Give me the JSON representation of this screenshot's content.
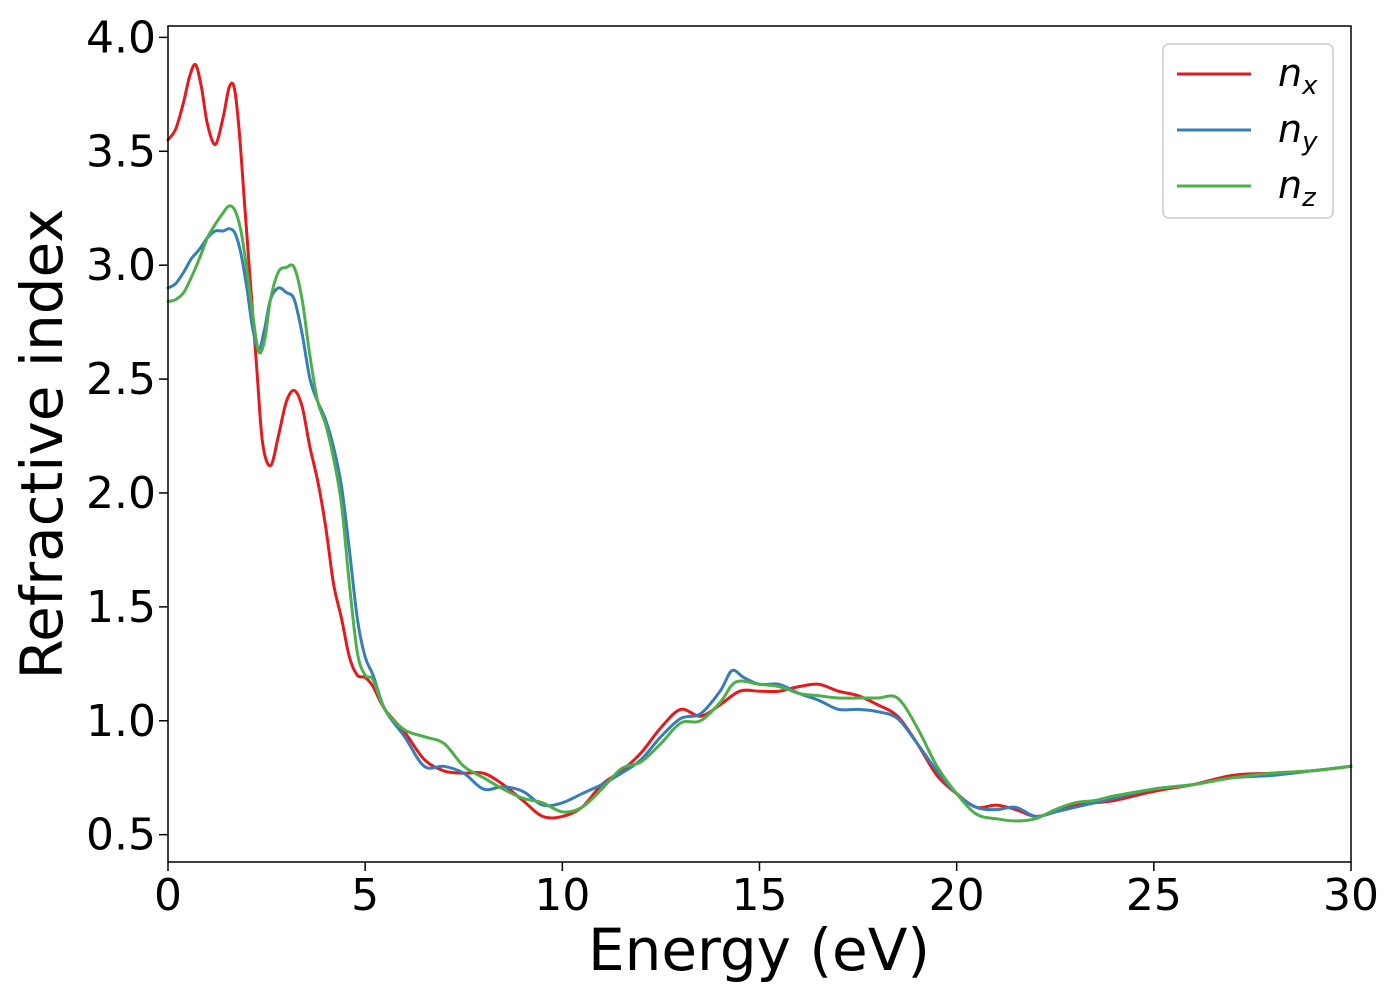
{
  "chart_data": {
    "type": "line",
    "xlabel": "Energy (eV)",
    "ylabel": "Refractive index",
    "xlim": [
      0,
      30
    ],
    "ylim": [
      0.38,
      4.05
    ],
    "xticks": [
      0,
      5,
      10,
      15,
      20,
      25,
      30
    ],
    "yticks": [
      0.5,
      1.0,
      1.5,
      2.0,
      2.5,
      3.0,
      3.5,
      4.0
    ],
    "xtick_labels": [
      "0",
      "5",
      "10",
      "15",
      "20",
      "25",
      "30"
    ],
    "ytick_labels": [
      "0.5",
      "1.0",
      "1.5",
      "2.0",
      "2.5",
      "3.0",
      "3.5",
      "4.0"
    ],
    "grid": false,
    "legend_position": "top-right",
    "series": [
      {
        "name": "n",
        "subscript": "x",
        "color": "#e41a1c",
        "x": [
          0,
          0.2,
          0.4,
          0.55,
          0.7,
          0.85,
          1.0,
          1.2,
          1.4,
          1.55,
          1.68,
          1.8,
          1.95,
          2.1,
          2.25,
          2.4,
          2.6,
          2.8,
          3.0,
          3.2,
          3.4,
          3.6,
          3.8,
          4.0,
          4.2,
          4.4,
          4.6,
          4.8,
          5.0,
          5.2,
          5.5,
          6.0,
          6.5,
          7.0,
          7.5,
          8.0,
          8.5,
          9.0,
          9.5,
          10.0,
          10.5,
          11.0,
          11.5,
          12.0,
          12.5,
          13.0,
          13.5,
          14.0,
          14.5,
          15.0,
          15.5,
          16.0,
          16.5,
          17.0,
          17.5,
          18.0,
          18.5,
          19.0,
          19.5,
          20.0,
          20.5,
          21.0,
          21.5,
          22.0,
          22.5,
          23.0,
          23.5,
          24.0,
          25.0,
          26.0,
          27.0,
          28.0,
          29.0,
          30.0
        ],
        "y": [
          3.55,
          3.6,
          3.72,
          3.83,
          3.88,
          3.78,
          3.62,
          3.53,
          3.65,
          3.78,
          3.78,
          3.6,
          3.25,
          2.9,
          2.55,
          2.22,
          2.12,
          2.25,
          2.4,
          2.45,
          2.38,
          2.2,
          2.05,
          1.85,
          1.6,
          1.45,
          1.28,
          1.2,
          1.19,
          1.15,
          1.05,
          0.95,
          0.83,
          0.78,
          0.77,
          0.77,
          0.72,
          0.65,
          0.58,
          0.58,
          0.62,
          0.72,
          0.78,
          0.86,
          0.97,
          1.05,
          1.02,
          1.07,
          1.13,
          1.13,
          1.13,
          1.15,
          1.16,
          1.13,
          1.11,
          1.07,
          1.02,
          0.9,
          0.76,
          0.68,
          0.62,
          0.63,
          0.61,
          0.58,
          0.6,
          0.63,
          0.64,
          0.65,
          0.69,
          0.72,
          0.76,
          0.77,
          0.78,
          0.8
        ]
      },
      {
        "name": "n",
        "subscript": "y",
        "color": "#377eb8",
        "x": [
          0,
          0.2,
          0.4,
          0.6,
          0.8,
          1.0,
          1.2,
          1.4,
          1.55,
          1.7,
          1.85,
          2.0,
          2.15,
          2.3,
          2.45,
          2.6,
          2.8,
          3.0,
          3.2,
          3.4,
          3.6,
          3.8,
          4.0,
          4.2,
          4.4,
          4.6,
          4.8,
          5.0,
          5.2,
          5.5,
          6.0,
          6.5,
          7.0,
          7.5,
          8.0,
          8.5,
          9.0,
          9.5,
          10.0,
          10.5,
          11.0,
          11.5,
          12.0,
          12.5,
          13.0,
          13.5,
          14.0,
          14.3,
          14.6,
          15.0,
          15.5,
          16.0,
          16.5,
          17.0,
          17.5,
          18.0,
          18.5,
          19.0,
          19.5,
          20.0,
          20.5,
          21.0,
          21.5,
          22.0,
          22.5,
          23.0,
          23.5,
          24.0,
          25.0,
          26.0,
          27.0,
          28.0,
          29.0,
          30.0
        ],
        "y": [
          2.9,
          2.92,
          2.97,
          3.03,
          3.07,
          3.12,
          3.15,
          3.15,
          3.16,
          3.14,
          3.05,
          2.9,
          2.72,
          2.63,
          2.72,
          2.85,
          2.9,
          2.88,
          2.85,
          2.7,
          2.5,
          2.4,
          2.32,
          2.2,
          2.03,
          1.75,
          1.45,
          1.28,
          1.2,
          1.05,
          0.93,
          0.8,
          0.8,
          0.77,
          0.7,
          0.71,
          0.69,
          0.63,
          0.64,
          0.68,
          0.72,
          0.77,
          0.83,
          0.93,
          1.01,
          1.03,
          1.13,
          1.22,
          1.19,
          1.16,
          1.16,
          1.12,
          1.09,
          1.05,
          1.05,
          1.04,
          1.01,
          0.9,
          0.78,
          0.68,
          0.62,
          0.61,
          0.62,
          0.58,
          0.6,
          0.62,
          0.64,
          0.66,
          0.7,
          0.72,
          0.75,
          0.76,
          0.78,
          0.8
        ]
      },
      {
        "name": "n",
        "subscript": "z",
        "color": "#4daf4a",
        "x": [
          0,
          0.2,
          0.4,
          0.6,
          0.8,
          1.0,
          1.2,
          1.4,
          1.55,
          1.7,
          1.85,
          2.0,
          2.15,
          2.3,
          2.45,
          2.6,
          2.8,
          3.0,
          3.2,
          3.4,
          3.6,
          3.8,
          4.0,
          4.2,
          4.4,
          4.6,
          4.8,
          5.0,
          5.2,
          5.5,
          6.0,
          6.5,
          7.0,
          7.5,
          8.0,
          8.5,
          9.0,
          9.5,
          10.0,
          10.5,
          11.0,
          11.5,
          12.0,
          12.5,
          13.0,
          13.5,
          14.0,
          14.4,
          15.0,
          15.5,
          16.0,
          16.5,
          17.0,
          17.5,
          18.0,
          18.5,
          19.0,
          19.5,
          20.0,
          20.5,
          21.0,
          21.5,
          22.0,
          22.5,
          23.0,
          23.5,
          24.0,
          25.0,
          26.0,
          27.0,
          28.0,
          29.0,
          30.0
        ],
        "y": [
          2.84,
          2.85,
          2.88,
          2.95,
          3.03,
          3.12,
          3.18,
          3.23,
          3.26,
          3.24,
          3.15,
          2.98,
          2.78,
          2.62,
          2.67,
          2.85,
          2.97,
          2.99,
          2.99,
          2.85,
          2.6,
          2.4,
          2.3,
          2.15,
          1.95,
          1.6,
          1.3,
          1.2,
          1.18,
          1.05,
          0.96,
          0.93,
          0.9,
          0.8,
          0.75,
          0.7,
          0.66,
          0.64,
          0.6,
          0.62,
          0.7,
          0.79,
          0.82,
          0.9,
          0.99,
          1.0,
          1.08,
          1.17,
          1.16,
          1.15,
          1.12,
          1.11,
          1.1,
          1.1,
          1.1,
          1.1,
          0.97,
          0.8,
          0.68,
          0.59,
          0.57,
          0.56,
          0.57,
          0.61,
          0.64,
          0.65,
          0.67,
          0.7,
          0.72,
          0.75,
          0.77,
          0.78,
          0.8
        ]
      }
    ]
  }
}
